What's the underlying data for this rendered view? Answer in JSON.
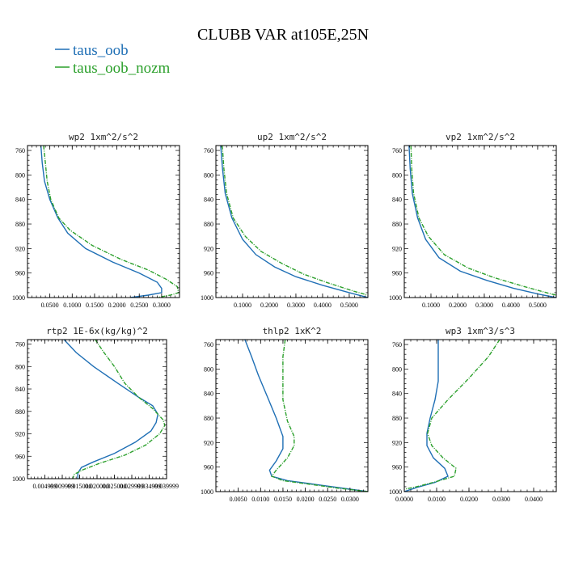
{
  "suptitle": "CLUBB VAR at105E,25N",
  "colors": {
    "taus_oob": "#1f6fb5",
    "taus_oob_nozm": "#2ca02c"
  },
  "legend": [
    {
      "label": "taus_oob",
      "color": "#1f6fb5"
    },
    {
      "label": "taus_oob_nozm",
      "color": "#2ca02c"
    }
  ],
  "chart_data": [
    {
      "type": "line",
      "title": "wp2   1xm^2/s^2",
      "xlim": [
        0,
        0.34
      ],
      "ylim": [
        1000,
        752
      ],
      "y_inverted": true,
      "xticks": [
        0.05,
        0.1,
        0.15,
        0.2,
        0.25,
        0.3
      ],
      "xticklabels": [
        "0.0500",
        "0.1000",
        "0.1500",
        "0.2000",
        "0.2500",
        "0.3000"
      ],
      "yticks": [
        760,
        800,
        840,
        880,
        920,
        960,
        1000
      ],
      "yticklabels": [
        "760",
        "800",
        "840",
        "880",
        "920",
        "960",
        "1000"
      ],
      "series": [
        {
          "name": "taus_oob",
          "style": "solid",
          "color": "#1f6fb5",
          "points": [
            [
              0.03,
              752
            ],
            [
              0.033,
              780
            ],
            [
              0.038,
              810
            ],
            [
              0.05,
              840
            ],
            [
              0.068,
              870
            ],
            [
              0.09,
              895
            ],
            [
              0.13,
              920
            ],
            [
              0.19,
              942
            ],
            [
              0.25,
              960
            ],
            [
              0.29,
              975
            ],
            [
              0.3,
              985
            ],
            [
              0.3,
              992
            ],
            [
              0.27,
              996
            ],
            [
              0.23,
              1000
            ]
          ]
        },
        {
          "name": "taus_oob_nozm",
          "style": "dashdot",
          "color": "#2ca02c",
          "points": [
            [
              0.036,
              752
            ],
            [
              0.04,
              780
            ],
            [
              0.044,
              810
            ],
            [
              0.052,
              840
            ],
            [
              0.07,
              870
            ],
            [
              0.095,
              890
            ],
            [
              0.145,
              915
            ],
            [
              0.21,
              938
            ],
            [
              0.27,
              955
            ],
            [
              0.31,
              970
            ],
            [
              0.335,
              982
            ],
            [
              0.338,
              992
            ],
            [
              0.32,
              996
            ],
            [
              0.29,
              1000
            ]
          ]
        }
      ]
    },
    {
      "type": "line",
      "title": "up2   1xm^2/s^2",
      "xlim": [
        0,
        0.57
      ],
      "ylim": [
        1000,
        752
      ],
      "y_inverted": true,
      "xticks": [
        0.1,
        0.2,
        0.3,
        0.4,
        0.5
      ],
      "xticklabels": [
        "0.1000",
        "0.2000",
        "0.3000",
        "0.4000",
        "0.5000"
      ],
      "yticks": [
        760,
        800,
        840,
        880,
        920,
        960,
        1000
      ],
      "yticklabels": [
        "760",
        "800",
        "840",
        "880",
        "920",
        "960",
        "1000"
      ],
      "series": [
        {
          "name": "taus_oob",
          "style": "solid",
          "color": "#1f6fb5",
          "points": [
            [
              0.018,
              752
            ],
            [
              0.025,
              790
            ],
            [
              0.035,
              830
            ],
            [
              0.06,
              870
            ],
            [
              0.1,
              905
            ],
            [
              0.15,
              930
            ],
            [
              0.22,
              950
            ],
            [
              0.3,
              966
            ],
            [
              0.4,
              980
            ],
            [
              0.5,
              992
            ],
            [
              0.57,
              1000
            ]
          ]
        },
        {
          "name": "taus_oob_nozm",
          "style": "dashdot",
          "color": "#2ca02c",
          "points": [
            [
              0.024,
              752
            ],
            [
              0.03,
              790
            ],
            [
              0.04,
              830
            ],
            [
              0.065,
              870
            ],
            [
              0.11,
              900
            ],
            [
              0.17,
              925
            ],
            [
              0.25,
              945
            ],
            [
              0.33,
              962
            ],
            [
              0.42,
              976
            ],
            [
              0.52,
              990
            ],
            [
              0.57,
              996
            ]
          ]
        }
      ]
    },
    {
      "type": "line",
      "title": "vp2   1xm^2/s^2",
      "xlim": [
        0,
        0.57
      ],
      "ylim": [
        1000,
        752
      ],
      "y_inverted": true,
      "xticks": [
        0.1,
        0.2,
        0.3,
        0.4,
        0.5
      ],
      "xticklabels": [
        "0.1000",
        "0.2000",
        "0.3000",
        "0.4000",
        "0.5000"
      ],
      "yticks": [
        760,
        800,
        840,
        880,
        920,
        960,
        1000
      ],
      "yticklabels": [
        "760",
        "800",
        "840",
        "880",
        "920",
        "960",
        "1000"
      ],
      "series": [
        {
          "name": "taus_oob",
          "style": "solid",
          "color": "#1f6fb5",
          "points": [
            [
              0.018,
              752
            ],
            [
              0.022,
              790
            ],
            [
              0.03,
              830
            ],
            [
              0.05,
              870
            ],
            [
              0.08,
              905
            ],
            [
              0.13,
              935
            ],
            [
              0.21,
              957
            ],
            [
              0.31,
              972
            ],
            [
              0.41,
              985
            ],
            [
              0.51,
              995
            ],
            [
              0.57,
              1000
            ]
          ]
        },
        {
          "name": "taus_oob_nozm",
          "style": "dashdot",
          "color": "#2ca02c",
          "points": [
            [
              0.025,
              752
            ],
            [
              0.028,
              790
            ],
            [
              0.035,
              830
            ],
            [
              0.055,
              870
            ],
            [
              0.09,
              900
            ],
            [
              0.15,
              930
            ],
            [
              0.24,
              952
            ],
            [
              0.34,
              968
            ],
            [
              0.45,
              982
            ],
            [
              0.55,
              994
            ],
            [
              0.57,
              996
            ]
          ]
        }
      ]
    },
    {
      "type": "line",
      "title": "rtp2   1E-6x(kg/kg)^2",
      "xlim": [
        0,
        0.04
      ],
      "ylim": [
        1000,
        752
      ],
      "y_inverted": true,
      "xticks": [
        0.005,
        0.01,
        0.015,
        0.02,
        0.025,
        0.03,
        0.035,
        0.04
      ],
      "xticklabels": [
        "0.004999",
        "0.009999",
        "0.015000",
        "0.020000",
        "0.025000",
        "0.029999",
        "0.034999",
        "0.039999"
      ],
      "yticks": [
        760,
        800,
        840,
        880,
        920,
        960,
        1000
      ],
      "yticklabels": [
        "760",
        "800",
        "840",
        "880",
        "920",
        "960",
        "1000"
      ],
      "series": [
        {
          "name": "taus_oob",
          "style": "solid",
          "color": "#1f6fb5",
          "points": [
            [
              0.0105,
              752
            ],
            [
              0.014,
              775
            ],
            [
              0.019,
              800
            ],
            [
              0.026,
              830
            ],
            [
              0.032,
              855
            ],
            [
              0.036,
              870
            ],
            [
              0.0375,
              885
            ],
            [
              0.037,
              900
            ],
            [
              0.0355,
              915
            ],
            [
              0.031,
              935
            ],
            [
              0.025,
              955
            ],
            [
              0.019,
              970
            ],
            [
              0.0155,
              980
            ],
            [
              0.0145,
              990
            ],
            [
              0.0145,
              1000
            ]
          ]
        },
        {
          "name": "taus_oob_nozm",
          "style": "dashdot",
          "color": "#2ca02c",
          "points": [
            [
              0.0195,
              752
            ],
            [
              0.022,
              775
            ],
            [
              0.025,
              800
            ],
            [
              0.028,
              830
            ],
            [
              0.032,
              855
            ],
            [
              0.036,
              875
            ],
            [
              0.039,
              895
            ],
            [
              0.0395,
              905
            ],
            [
              0.038,
              920
            ],
            [
              0.034,
              940
            ],
            [
              0.028,
              958
            ],
            [
              0.021,
              972
            ],
            [
              0.016,
              984
            ],
            [
              0.0135,
              992
            ],
            [
              0.013,
              1000
            ]
          ]
        }
      ]
    },
    {
      "type": "line",
      "title": "thlp2   1xK^2",
      "xlim": [
        0,
        0.034
      ],
      "ylim": [
        1000,
        752
      ],
      "y_inverted": true,
      "xticks": [
        0.005,
        0.01,
        0.015,
        0.02,
        0.025,
        0.03
      ],
      "xticklabels": [
        "0.0050",
        "0.0100",
        "0.0150",
        "0.0200",
        "0.0250",
        "0.0300"
      ],
      "yticks": [
        760,
        800,
        840,
        880,
        920,
        960,
        1000
      ],
      "yticklabels": [
        "760",
        "800",
        "840",
        "880",
        "920",
        "960",
        "1000"
      ],
      "series": [
        {
          "name": "taus_oob",
          "style": "solid",
          "color": "#1f6fb5",
          "points": [
            [
              0.0065,
              752
            ],
            [
              0.008,
              780
            ],
            [
              0.0095,
              810
            ],
            [
              0.0115,
              845
            ],
            [
              0.0135,
              880
            ],
            [
              0.015,
              910
            ],
            [
              0.015,
              930
            ],
            [
              0.0135,
              950
            ],
            [
              0.012,
              965
            ],
            [
              0.0125,
              975
            ],
            [
              0.016,
              982
            ],
            [
              0.022,
              988
            ],
            [
              0.028,
              994
            ],
            [
              0.034,
              1000
            ]
          ]
        },
        {
          "name": "taus_oob_nozm",
          "style": "dashdot",
          "color": "#2ca02c",
          "points": [
            [
              0.0155,
              752
            ],
            [
              0.015,
              780
            ],
            [
              0.015,
              810
            ],
            [
              0.015,
              850
            ],
            [
              0.016,
              885
            ],
            [
              0.0175,
              910
            ],
            [
              0.0175,
              925
            ],
            [
              0.016,
              945
            ],
            [
              0.0135,
              965
            ],
            [
              0.0125,
              975
            ],
            [
              0.015,
              982
            ],
            [
              0.021,
              988
            ],
            [
              0.027,
              994
            ],
            [
              0.034,
              1000
            ]
          ]
        }
      ]
    },
    {
      "type": "line",
      "title": "wp3   1xm^3/s^3",
      "xlim": [
        0,
        0.047
      ],
      "ylim": [
        1000,
        752
      ],
      "y_inverted": true,
      "xticks": [
        0,
        0.01,
        0.02,
        0.03,
        0.04
      ],
      "xticklabels": [
        "0.0000",
        "0.0100",
        "0.0200",
        "0.0300",
        "0.0400"
      ],
      "yticks": [
        760,
        800,
        840,
        880,
        920,
        960,
        1000
      ],
      "yticklabels": [
        "760",
        "800",
        "840",
        "880",
        "920",
        "960",
        "1000"
      ],
      "series": [
        {
          "name": "taus_oob",
          "style": "solid",
          "color": "#1f6fb5",
          "points": [
            [
              0.0105,
              752
            ],
            [
              0.0105,
              790
            ],
            [
              0.0105,
              820
            ],
            [
              0.0095,
              850
            ],
            [
              0.008,
              880
            ],
            [
              0.007,
              905
            ],
            [
              0.007,
              925
            ],
            [
              0.009,
              945
            ],
            [
              0.0125,
              962
            ],
            [
              0.0135,
              975
            ],
            [
              0.0095,
              985
            ],
            [
              0.004,
              993
            ],
            [
              0.0,
              1000
            ]
          ]
        },
        {
          "name": "taus_oob_nozm",
          "style": "dashdot",
          "color": "#2ca02c",
          "points": [
            [
              0.0295,
              752
            ],
            [
              0.026,
              780
            ],
            [
              0.02,
              815
            ],
            [
              0.0135,
              850
            ],
            [
              0.0085,
              880
            ],
            [
              0.0072,
              905
            ],
            [
              0.0085,
              925
            ],
            [
              0.012,
              945
            ],
            [
              0.016,
              962
            ],
            [
              0.0155,
              975
            ],
            [
              0.009,
              985
            ],
            [
              0.003,
              993
            ],
            [
              0.0,
              996
            ]
          ]
        }
      ]
    }
  ]
}
